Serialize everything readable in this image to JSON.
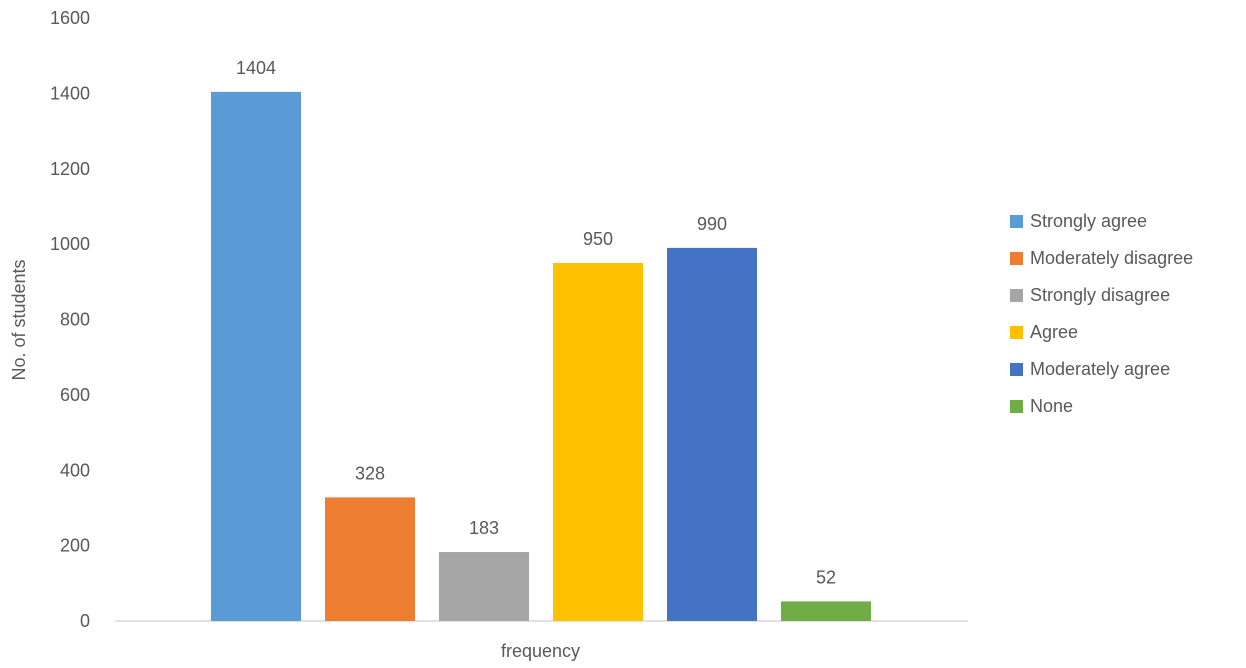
{
  "chart_data": {
    "type": "bar",
    "title": "",
    "xlabel": "frequency",
    "ylabel": "No. of students",
    "ylim": [
      0,
      1600
    ],
    "yticks": [
      0,
      200,
      400,
      600,
      800,
      1000,
      1200,
      1400,
      1600
    ],
    "categories": [
      "frequency"
    ],
    "grid": false,
    "legend_position": "right",
    "data_labels": true,
    "series": [
      {
        "name": "Strongly agree",
        "values": [
          1404
        ],
        "color": "#5B9BD5"
      },
      {
        "name": "Moderately disagree",
        "values": [
          328
        ],
        "color": "#ED7D31"
      },
      {
        "name": "Strongly disagree",
        "values": [
          183
        ],
        "color": "#A5A5A5"
      },
      {
        "name": "Agree",
        "values": [
          950
        ],
        "color": "#FFC000"
      },
      {
        "name": "Moderately agree",
        "values": [
          990
        ],
        "color": "#4472C4"
      },
      {
        "name": "None",
        "values": [
          52
        ],
        "color": "#70AD47"
      }
    ]
  }
}
